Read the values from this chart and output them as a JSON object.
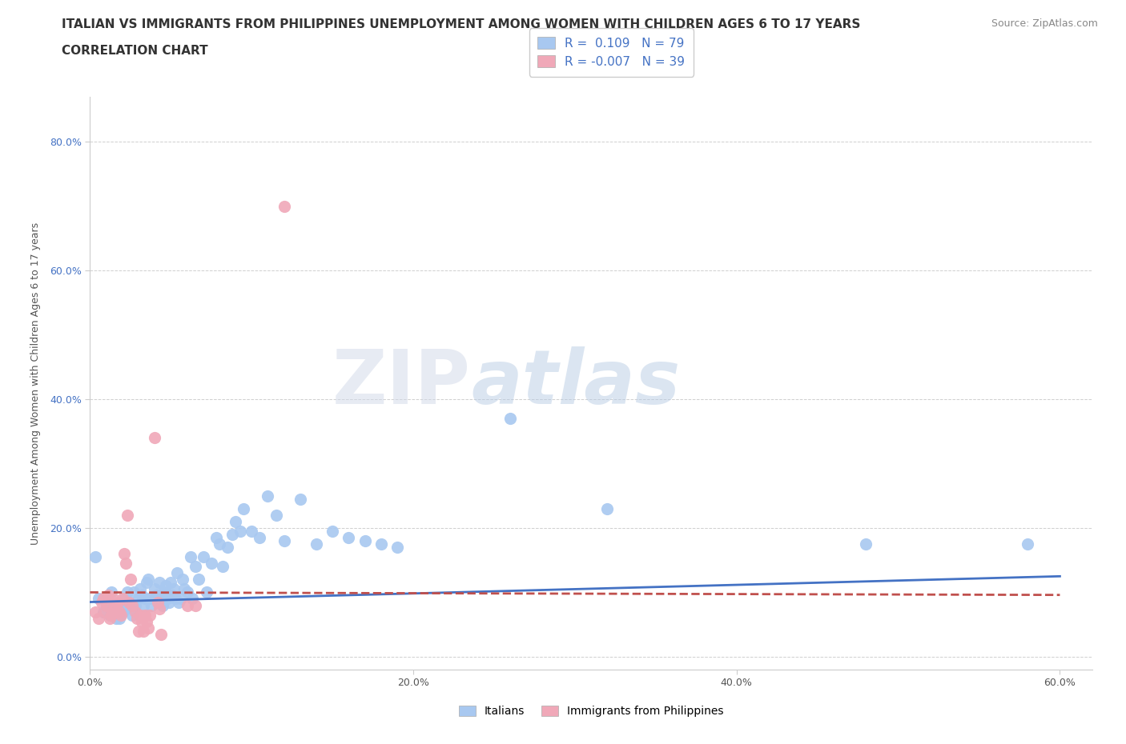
{
  "title_line1": "ITALIAN VS IMMIGRANTS FROM PHILIPPINES UNEMPLOYMENT AMONG WOMEN WITH CHILDREN AGES 6 TO 17 YEARS",
  "title_line2": "CORRELATION CHART",
  "source_text": "Source: ZipAtlas.com",
  "ylabel": "Unemployment Among Women with Children Ages 6 to 17 years",
  "xlim": [
    0.0,
    0.62
  ],
  "ylim": [
    -0.02,
    0.87
  ],
  "xtick_labels": [
    "0.0%",
    "20.0%",
    "40.0%",
    "60.0%"
  ],
  "xtick_vals": [
    0.0,
    0.2,
    0.4,
    0.6
  ],
  "ytick_labels": [
    "0.0%",
    "20.0%",
    "40.0%",
    "60.0%",
    "80.0%"
  ],
  "ytick_vals": [
    0.0,
    0.2,
    0.4,
    0.6,
    0.8
  ],
  "legend_r_italian": "0.109",
  "legend_n_italian": "79",
  "legend_r_philippines": "-0.007",
  "legend_n_philippines": "39",
  "italian_color": "#a8c8f0",
  "philippines_color": "#f0a8b8",
  "trendline_italian_color": "#4472c4",
  "trendline_philippines_color": "#c0504d",
  "trendline_philippines_dash": "--",
  "background_color": "#ffffff",
  "grid_color": "#b0b0b0",
  "italian_scatter": [
    [
      0.003,
      0.155
    ],
    [
      0.005,
      0.09
    ],
    [
      0.008,
      0.07
    ],
    [
      0.01,
      0.085
    ],
    [
      0.012,
      0.065
    ],
    [
      0.013,
      0.1
    ],
    [
      0.015,
      0.075
    ],
    [
      0.016,
      0.06
    ],
    [
      0.017,
      0.08
    ],
    [
      0.018,
      0.06
    ],
    [
      0.02,
      0.07
    ],
    [
      0.021,
      0.09
    ],
    [
      0.022,
      0.075
    ],
    [
      0.023,
      0.1
    ],
    [
      0.024,
      0.085
    ],
    [
      0.025,
      0.08
    ],
    [
      0.026,
      0.065
    ],
    [
      0.027,
      0.1
    ],
    [
      0.028,
      0.08
    ],
    [
      0.03,
      0.09
    ],
    [
      0.031,
      0.105
    ],
    [
      0.032,
      0.095
    ],
    [
      0.033,
      0.08
    ],
    [
      0.034,
      0.09
    ],
    [
      0.035,
      0.115
    ],
    [
      0.036,
      0.12
    ],
    [
      0.037,
      0.09
    ],
    [
      0.038,
      0.08
    ],
    [
      0.04,
      0.105
    ],
    [
      0.041,
      0.095
    ],
    [
      0.042,
      0.085
    ],
    [
      0.043,
      0.115
    ],
    [
      0.044,
      0.095
    ],
    [
      0.045,
      0.08
    ],
    [
      0.046,
      0.1
    ],
    [
      0.047,
      0.11
    ],
    [
      0.048,
      0.09
    ],
    [
      0.049,
      0.085
    ],
    [
      0.05,
      0.115
    ],
    [
      0.051,
      0.095
    ],
    [
      0.052,
      0.105
    ],
    [
      0.053,
      0.09
    ],
    [
      0.054,
      0.13
    ],
    [
      0.055,
      0.085
    ],
    [
      0.056,
      0.09
    ],
    [
      0.057,
      0.12
    ],
    [
      0.058,
      0.105
    ],
    [
      0.06,
      0.1
    ],
    [
      0.062,
      0.155
    ],
    [
      0.063,
      0.09
    ],
    [
      0.065,
      0.14
    ],
    [
      0.067,
      0.12
    ],
    [
      0.07,
      0.155
    ],
    [
      0.072,
      0.1
    ],
    [
      0.075,
      0.145
    ],
    [
      0.078,
      0.185
    ],
    [
      0.08,
      0.175
    ],
    [
      0.082,
      0.14
    ],
    [
      0.085,
      0.17
    ],
    [
      0.088,
      0.19
    ],
    [
      0.09,
      0.21
    ],
    [
      0.093,
      0.195
    ],
    [
      0.095,
      0.23
    ],
    [
      0.1,
      0.195
    ],
    [
      0.105,
      0.185
    ],
    [
      0.11,
      0.25
    ],
    [
      0.115,
      0.22
    ],
    [
      0.12,
      0.18
    ],
    [
      0.13,
      0.245
    ],
    [
      0.14,
      0.175
    ],
    [
      0.15,
      0.195
    ],
    [
      0.16,
      0.185
    ],
    [
      0.17,
      0.18
    ],
    [
      0.18,
      0.175
    ],
    [
      0.19,
      0.17
    ],
    [
      0.26,
      0.37
    ],
    [
      0.32,
      0.23
    ],
    [
      0.48,
      0.175
    ],
    [
      0.58,
      0.175
    ]
  ],
  "philippines_scatter": [
    [
      0.003,
      0.07
    ],
    [
      0.005,
      0.06
    ],
    [
      0.007,
      0.085
    ],
    [
      0.008,
      0.09
    ],
    [
      0.009,
      0.07
    ],
    [
      0.01,
      0.08
    ],
    [
      0.011,
      0.095
    ],
    [
      0.012,
      0.06
    ],
    [
      0.013,
      0.065
    ],
    [
      0.014,
      0.09
    ],
    [
      0.015,
      0.08
    ],
    [
      0.016,
      0.07
    ],
    [
      0.017,
      0.085
    ],
    [
      0.018,
      0.07
    ],
    [
      0.019,
      0.065
    ],
    [
      0.02,
      0.09
    ],
    [
      0.021,
      0.16
    ],
    [
      0.022,
      0.145
    ],
    [
      0.023,
      0.22
    ],
    [
      0.024,
      0.085
    ],
    [
      0.025,
      0.12
    ],
    [
      0.026,
      0.08
    ],
    [
      0.028,
      0.07
    ],
    [
      0.029,
      0.06
    ],
    [
      0.03,
      0.04
    ],
    [
      0.031,
      0.065
    ],
    [
      0.032,
      0.055
    ],
    [
      0.033,
      0.04
    ],
    [
      0.034,
      0.065
    ],
    [
      0.035,
      0.055
    ],
    [
      0.036,
      0.045
    ],
    [
      0.037,
      0.065
    ],
    [
      0.04,
      0.34
    ],
    [
      0.042,
      0.085
    ],
    [
      0.043,
      0.075
    ],
    [
      0.044,
      0.035
    ],
    [
      0.06,
      0.08
    ],
    [
      0.065,
      0.08
    ],
    [
      0.12,
      0.7
    ]
  ],
  "title_fontsize": 11,
  "axis_label_fontsize": 9,
  "tick_fontsize": 9,
  "legend_fontsize": 11
}
